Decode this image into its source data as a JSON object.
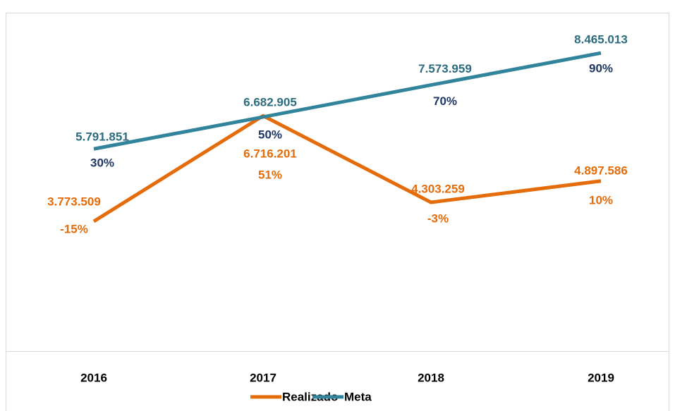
{
  "chart_data": {
    "type": "line",
    "categories": [
      "2016",
      "2017",
      "2018",
      "2019"
    ],
    "series": [
      {
        "name": "Realizado",
        "color": "#e46c0a",
        "values": [
          3773509,
          6716201,
          4303259,
          4897586
        ],
        "value_labels": [
          "3.773.509",
          "6.716.201",
          "4.303.259",
          "4.897.586"
        ],
        "percent_labels": [
          "-15%",
          "51%",
          "-3%",
          "10%"
        ]
      },
      {
        "name": "Meta",
        "color": "#31849b",
        "values": [
          5791851,
          6682905,
          7573959,
          8465013
        ],
        "value_labels": [
          "5.791.851",
          "6.682.905",
          "7.573.959",
          "8.465.013"
        ],
        "percent_labels": [
          "30%",
          "50%",
          "70%",
          "90%"
        ]
      }
    ],
    "ylim": [
      0,
      9000000
    ]
  }
}
